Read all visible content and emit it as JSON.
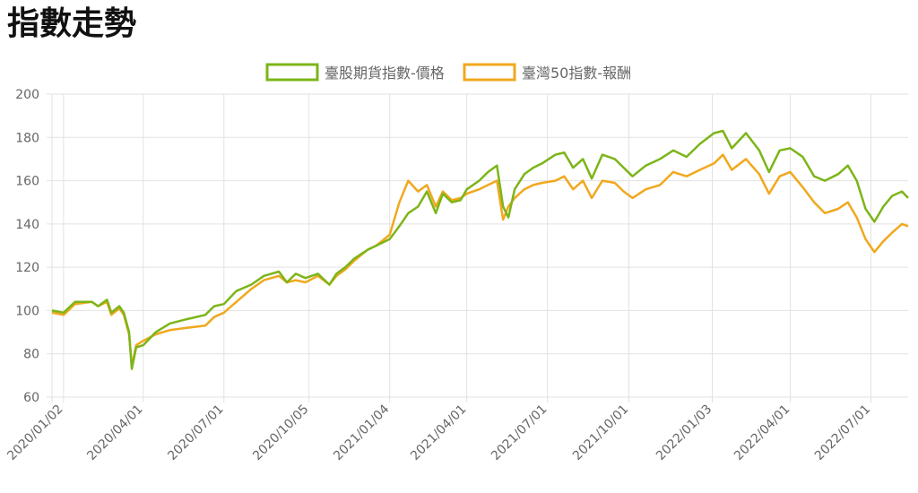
{
  "page": {
    "title": "指數走勢"
  },
  "chart_data": {
    "type": "line",
    "title": "",
    "xlabel": "",
    "ylabel": "",
    "ylim": [
      60,
      200
    ],
    "yticks": [
      60,
      80,
      100,
      120,
      140,
      160,
      180,
      200
    ],
    "x_tick_labels": [
      "2020/01/02",
      "2020/04/01",
      "2020/07/01",
      "2020/10/05",
      "2021/01/04",
      "2021/04/01",
      "2021/07/01",
      "2021/10/01",
      "2022/01/03",
      "2022/04/01",
      "2022/07/01"
    ],
    "x_range": [
      "2019/12/20",
      "2022/08/12"
    ],
    "grid": true,
    "legend_position": "top",
    "series": [
      {
        "name": "臺股期貨指數-價格",
        "color": "#7cb518",
        "points": [
          [
            "2019/12/20",
            100
          ],
          [
            "2020/01/02",
            99
          ],
          [
            "2020/01/15",
            104
          ],
          [
            "2020/02/03",
            104
          ],
          [
            "2020/02/10",
            102
          ],
          [
            "2020/02/20",
            105
          ],
          [
            "2020/02/25",
            99
          ],
          [
            "2020/03/05",
            102
          ],
          [
            "2020/03/10",
            99
          ],
          [
            "2020/03/16",
            90
          ],
          [
            "2020/03/19",
            73
          ],
          [
            "2020/03/24",
            83
          ],
          [
            "2020/04/01",
            84
          ],
          [
            "2020/04/15",
            90
          ],
          [
            "2020/05/01",
            94
          ],
          [
            "2020/05/20",
            96
          ],
          [
            "2020/06/10",
            98
          ],
          [
            "2020/06/20",
            102
          ],
          [
            "2020/07/01",
            103
          ],
          [
            "2020/07/15",
            109
          ],
          [
            "2020/08/01",
            112
          ],
          [
            "2020/08/15",
            116
          ],
          [
            "2020/09/01",
            118
          ],
          [
            "2020/09/10",
            113
          ],
          [
            "2020/09/20",
            117
          ],
          [
            "2020/10/01",
            115
          ],
          [
            "2020/10/15",
            117
          ],
          [
            "2020/10/28",
            112
          ],
          [
            "2020/11/05",
            117
          ],
          [
            "2020/11/15",
            120
          ],
          [
            "2020/11/25",
            124
          ],
          [
            "2020/12/10",
            128
          ],
          [
            "2020/12/20",
            130
          ],
          [
            "2021/01/04",
            133
          ],
          [
            "2021/01/15",
            139
          ],
          [
            "2021/01/25",
            145
          ],
          [
            "2021/02/05",
            148
          ],
          [
            "2021/02/15",
            155
          ],
          [
            "2021/02/25",
            145
          ],
          [
            "2021/03/05",
            154
          ],
          [
            "2021/03/15",
            150
          ],
          [
            "2021/03/25",
            151
          ],
          [
            "2021/04/01",
            156
          ],
          [
            "2021/04/15",
            160
          ],
          [
            "2021/04/25",
            164
          ],
          [
            "2021/05/05",
            167
          ],
          [
            "2021/05/12",
            148
          ],
          [
            "2021/05/18",
            143
          ],
          [
            "2021/05/25",
            156
          ],
          [
            "2021/06/05",
            163
          ],
          [
            "2021/06/15",
            166
          ],
          [
            "2021/06/25",
            168
          ],
          [
            "2021/07/10",
            172
          ],
          [
            "2021/07/20",
            173
          ],
          [
            "2021/07/30",
            166
          ],
          [
            "2021/08/10",
            170
          ],
          [
            "2021/08/20",
            161
          ],
          [
            "2021/09/01",
            172
          ],
          [
            "2021/09/15",
            170
          ],
          [
            "2021/09/25",
            166
          ],
          [
            "2021/10/05",
            162
          ],
          [
            "2021/10/20",
            167
          ],
          [
            "2021/11/05",
            170
          ],
          [
            "2021/11/20",
            174
          ],
          [
            "2021/12/05",
            171
          ],
          [
            "2021/12/20",
            177
          ],
          [
            "2022/01/05",
            182
          ],
          [
            "2022/01/15",
            183
          ],
          [
            "2022/01/25",
            175
          ],
          [
            "2022/02/10",
            182
          ],
          [
            "2022/02/25",
            174
          ],
          [
            "2022/03/08",
            164
          ],
          [
            "2022/03/20",
            174
          ],
          [
            "2022/04/01",
            175
          ],
          [
            "2022/04/15",
            171
          ],
          [
            "2022/04/28",
            162
          ],
          [
            "2022/05/10",
            160
          ],
          [
            "2022/05/25",
            163
          ],
          [
            "2022/06/05",
            167
          ],
          [
            "2022/06/15",
            160
          ],
          [
            "2022/06/25",
            147
          ],
          [
            "2022/07/05",
            141
          ],
          [
            "2022/07/15",
            148
          ],
          [
            "2022/07/25",
            153
          ],
          [
            "2022/08/05",
            155
          ],
          [
            "2022/08/12",
            152
          ]
        ]
      },
      {
        "name": "臺灣50指數-報酬",
        "color": "#f0a81e",
        "points": [
          [
            "2019/12/20",
            99
          ],
          [
            "2020/01/02",
            98
          ],
          [
            "2020/01/15",
            103
          ],
          [
            "2020/02/03",
            104
          ],
          [
            "2020/02/10",
            102
          ],
          [
            "2020/02/20",
            104
          ],
          [
            "2020/02/25",
            98
          ],
          [
            "2020/03/05",
            101
          ],
          [
            "2020/03/10",
            98
          ],
          [
            "2020/03/16",
            89
          ],
          [
            "2020/03/19",
            74
          ],
          [
            "2020/03/24",
            84
          ],
          [
            "2020/04/01",
            86
          ],
          [
            "2020/04/15",
            89
          ],
          [
            "2020/05/01",
            91
          ],
          [
            "2020/05/20",
            92
          ],
          [
            "2020/06/10",
            93
          ],
          [
            "2020/06/20",
            97
          ],
          [
            "2020/07/01",
            99
          ],
          [
            "2020/07/15",
            104
          ],
          [
            "2020/08/01",
            110
          ],
          [
            "2020/08/15",
            114
          ],
          [
            "2020/09/01",
            116
          ],
          [
            "2020/09/10",
            113
          ],
          [
            "2020/09/20",
            114
          ],
          [
            "2020/10/01",
            113
          ],
          [
            "2020/10/15",
            116
          ],
          [
            "2020/10/28",
            112
          ],
          [
            "2020/11/05",
            116
          ],
          [
            "2020/11/15",
            119
          ],
          [
            "2020/11/25",
            123
          ],
          [
            "2020/12/10",
            128
          ],
          [
            "2020/12/20",
            130
          ],
          [
            "2021/01/04",
            135
          ],
          [
            "2021/01/15",
            150
          ],
          [
            "2021/01/25",
            160
          ],
          [
            "2021/02/05",
            155
          ],
          [
            "2021/02/15",
            158
          ],
          [
            "2021/02/25",
            148
          ],
          [
            "2021/03/05",
            155
          ],
          [
            "2021/03/15",
            151
          ],
          [
            "2021/03/25",
            152
          ],
          [
            "2021/04/01",
            154
          ],
          [
            "2021/04/15",
            156
          ],
          [
            "2021/04/25",
            158
          ],
          [
            "2021/05/05",
            160
          ],
          [
            "2021/05/12",
            142
          ],
          [
            "2021/05/18",
            148
          ],
          [
            "2021/05/25",
            152
          ],
          [
            "2021/06/05",
            156
          ],
          [
            "2021/06/15",
            158
          ],
          [
            "2021/06/25",
            159
          ],
          [
            "2021/07/10",
            160
          ],
          [
            "2021/07/20",
            162
          ],
          [
            "2021/07/30",
            156
          ],
          [
            "2021/08/10",
            160
          ],
          [
            "2021/08/20",
            152
          ],
          [
            "2021/09/01",
            160
          ],
          [
            "2021/09/15",
            159
          ],
          [
            "2021/09/25",
            155
          ],
          [
            "2021/10/05",
            152
          ],
          [
            "2021/10/20",
            156
          ],
          [
            "2021/11/05",
            158
          ],
          [
            "2021/11/20",
            164
          ],
          [
            "2021/12/05",
            162
          ],
          [
            "2021/12/20",
            165
          ],
          [
            "2022/01/05",
            168
          ],
          [
            "2022/01/15",
            172
          ],
          [
            "2022/01/25",
            165
          ],
          [
            "2022/02/10",
            170
          ],
          [
            "2022/02/25",
            163
          ],
          [
            "2022/03/08",
            154
          ],
          [
            "2022/03/20",
            162
          ],
          [
            "2022/04/01",
            164
          ],
          [
            "2022/04/15",
            157
          ],
          [
            "2022/04/28",
            150
          ],
          [
            "2022/05/10",
            145
          ],
          [
            "2022/05/25",
            147
          ],
          [
            "2022/06/05",
            150
          ],
          [
            "2022/06/15",
            143
          ],
          [
            "2022/06/25",
            133
          ],
          [
            "2022/07/05",
            127
          ],
          [
            "2022/07/15",
            132
          ],
          [
            "2022/07/25",
            136
          ],
          [
            "2022/08/05",
            140
          ],
          [
            "2022/08/12",
            139
          ]
        ]
      }
    ]
  }
}
